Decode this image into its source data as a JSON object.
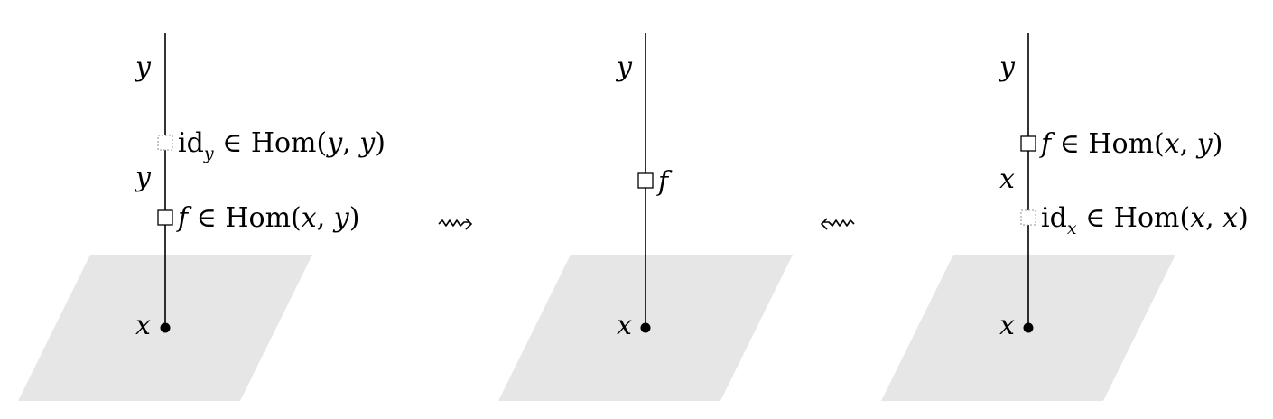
{
  "panel_left": {
    "top_label": "y",
    "middle_label": "y",
    "bottom_label": "x",
    "upper_box": {
      "name": "id",
      "sub": "y",
      "rel": " ∈ Hom(",
      "a": "y",
      "comma": ", ",
      "b": "y",
      "close": ")"
    },
    "lower_box": {
      "name": "f",
      "rel": " ∈ Hom(",
      "a": "x",
      "comma": ", ",
      "b": "y",
      "close": ")"
    }
  },
  "arrow_right": "⇝",
  "panel_middle": {
    "top_label": "y",
    "bottom_label": "x",
    "box_label": "f"
  },
  "arrow_left": "⇜",
  "panel_right": {
    "top_label": "y",
    "middle_label": "x",
    "bottom_label": "x",
    "upper_box": {
      "name": "f",
      "rel": " ∈ Hom(",
      "a": "x",
      "comma": ", ",
      "b": "y",
      "close": ")"
    },
    "lower_box": {
      "name": "id",
      "sub": "x",
      "rel": " ∈ Hom(",
      "a": "x",
      "comma": ", ",
      "b": "x",
      "close": ")"
    }
  },
  "colors": {
    "plane": "#e6e6e6",
    "line": "#000000",
    "dotted_box": "#aaaaaa"
  }
}
